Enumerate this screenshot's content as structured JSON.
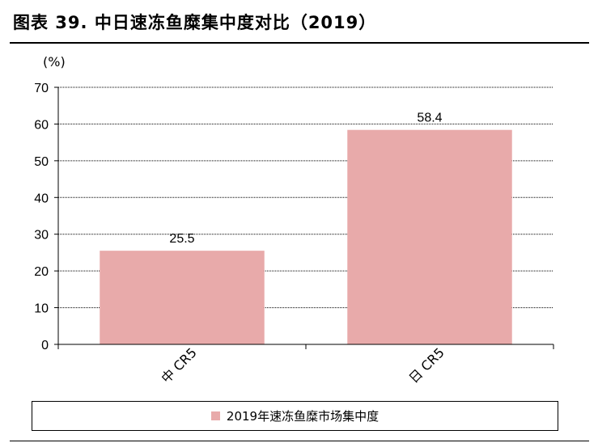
{
  "title": "图表 39. 中日速冻鱼糜集中度对比（2019）",
  "chart_data": {
    "type": "bar",
    "unit_label": "(%)",
    "categories": [
      "中 CR5",
      "日 CR5"
    ],
    "series": [
      {
        "name": "2019年速冻鱼糜市场集中度",
        "values": [
          25.5,
          58.4
        ],
        "color": "#e8aaaa"
      }
    ],
    "data_labels": [
      "25.5",
      "58.4"
    ],
    "ylim": [
      0,
      70
    ],
    "yticks": [
      0,
      10,
      20,
      30,
      40,
      50,
      60,
      70
    ],
    "grid": true,
    "legend": "bottom"
  }
}
